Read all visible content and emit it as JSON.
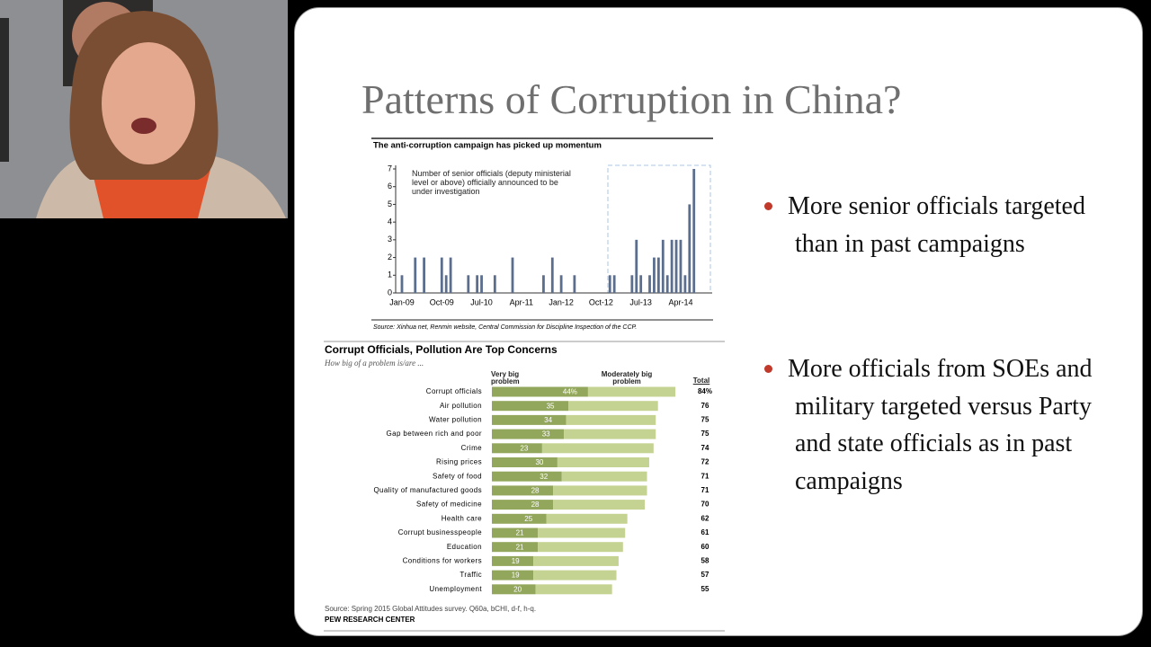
{
  "slide": {
    "title": "Patterns of Corruption in China?",
    "bullets": [
      "More senior officials targeted than in past campaigns",
      "More officials from SOEs and military targeted versus Party and state officials as in past campaigns"
    ]
  },
  "chart_data": [
    {
      "type": "bar",
      "title": "The anti-corruption campaign has picked up momentum",
      "annotation": "Number of senior officials (deputy ministerial level or above) officially announced to be under investigation",
      "categories": [
        "Jan-09",
        null,
        null,
        null,
        null,
        null,
        null,
        null,
        null,
        "Oct-09",
        null,
        null,
        null,
        null,
        null,
        null,
        null,
        null,
        "Jul-10",
        null,
        null,
        null,
        null,
        null,
        null,
        null,
        null,
        "Apr-11",
        null,
        null,
        null,
        null,
        null,
        null,
        null,
        null,
        "Jan-12",
        null,
        null,
        null,
        null,
        null,
        null,
        null,
        null,
        "Oct-12",
        null,
        null,
        null,
        null,
        null,
        null,
        null,
        null,
        "Jul-13",
        null,
        null,
        null,
        null,
        null,
        null,
        null,
        null,
        "Apr-14",
        null,
        null,
        null
      ],
      "values": [
        1,
        0,
        0,
        2,
        0,
        2,
        0,
        0,
        0,
        2,
        1,
        2,
        0,
        0,
        0,
        1,
        0,
        1,
        1,
        0,
        0,
        1,
        0,
        0,
        0,
        2,
        0,
        0,
        0,
        0,
        0,
        0,
        1,
        0,
        2,
        0,
        1,
        0,
        0,
        1,
        0,
        0,
        0,
        0,
        0,
        0,
        0,
        1,
        1,
        0,
        0,
        0,
        1,
        3,
        1,
        0,
        1,
        2,
        2,
        3,
        1,
        3,
        3,
        3,
        1,
        5,
        7
      ],
      "color": "#5b6e8e",
      "ylim": [
        0,
        7
      ],
      "yticks": [
        0,
        1,
        2,
        3,
        4,
        5,
        6,
        7
      ],
      "source": "Source: Xinhua net, Renmin website, Central Commission for Discipline Inspection of the CCP."
    },
    {
      "type": "stacked_barh",
      "title": "Corrupt Officials, Pollution Are Top Concerns",
      "subtitle": "How big of a problem is/are ...",
      "categories": [
        "Corrupt officials",
        "Air pollution",
        "Water pollution",
        "Gap between rich and poor",
        "Crime",
        "Rising prices",
        "Safety of food",
        "Quality of manufactured goods",
        "Safety of medicine",
        "Health care",
        "Corrupt businesspeople",
        "Education",
        "Conditions for workers",
        "Traffic",
        "Unemployment"
      ],
      "series": [
        {
          "name": "Very big problem",
          "color": "#93a75c",
          "values": [
            44,
            35,
            34,
            33,
            23,
            30,
            32,
            28,
            28,
            25,
            21,
            21,
            19,
            19,
            20
          ],
          "value_labels": [
            "44%",
            "35",
            "34",
            "33",
            "23",
            "30",
            "32",
            "28",
            "28",
            "25",
            "21",
            "21",
            "19",
            "19",
            "20"
          ]
        },
        {
          "name": "Moderately big problem",
          "color": "#c4d292",
          "values": [
            40,
            41,
            41,
            42,
            51,
            42,
            39,
            43,
            42,
            37,
            40,
            39,
            39,
            38,
            35
          ]
        }
      ],
      "totals_header": "Total",
      "totals": {
        "values": [
          84,
          76,
          75,
          75,
          74,
          72,
          71,
          71,
          70,
          62,
          61,
          60,
          58,
          57,
          55
        ],
        "value_labels": [
          "84%",
          "76",
          "75",
          "75",
          "74",
          "72",
          "71",
          "71",
          "70",
          "62",
          "61",
          "60",
          "58",
          "57",
          "55"
        ]
      },
      "source": "Source: Spring 2015 Global Attitudes survey. Q60a, bCHI, d-f, h-q.",
      "credit": "PEW RESEARCH CENTER"
    }
  ]
}
